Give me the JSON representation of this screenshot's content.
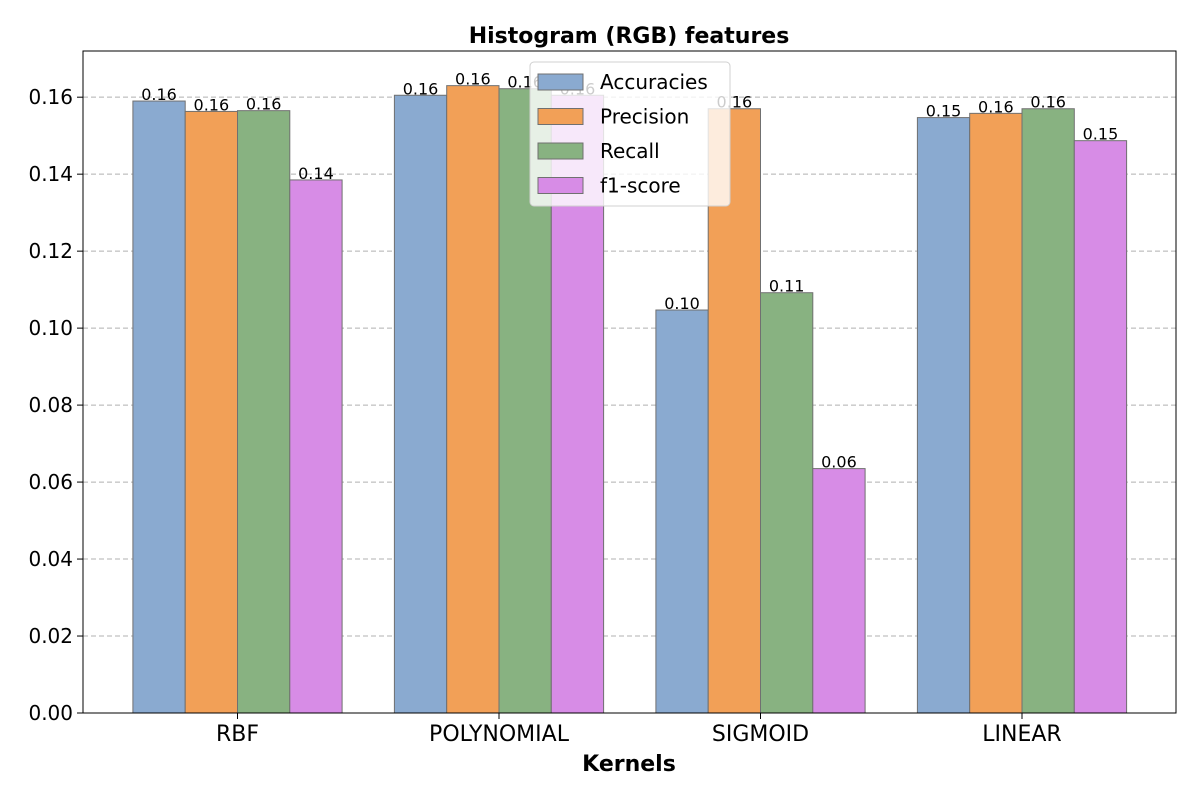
{
  "chart_data": {
    "type": "bar",
    "title": "Histogram (RGB) features",
    "xlabel": "Kernels",
    "ylabel": "",
    "categories": [
      "RBF",
      "POLYNOMIAL",
      "SIGMOID",
      "LINEAR"
    ],
    "series": [
      {
        "name": "Accuracies",
        "color": "#8aaad0",
        "values": [
          0.159,
          0.1605,
          0.1047,
          0.1547
        ],
        "labels": [
          "0.16",
          "0.16",
          "0.10",
          "0.15"
        ]
      },
      {
        "name": "Precision",
        "color": "#f2a057",
        "values": [
          0.1563,
          0.163,
          0.157,
          0.1558
        ],
        "labels": [
          "0.16",
          "0.16",
          "0.16",
          "0.16"
        ]
      },
      {
        "name": "Recall",
        "color": "#88b281",
        "values": [
          0.1565,
          0.1622,
          0.1092,
          0.157
        ],
        "labels": [
          "0.16",
          "0.16",
          "0.11",
          "0.16"
        ]
      },
      {
        "name": "f1-score",
        "color": "#d78ce6",
        "values": [
          0.1385,
          0.1605,
          0.0635,
          0.1487
        ],
        "labels": [
          "0.14",
          "0.16",
          "0.06",
          "0.15"
        ]
      }
    ],
    "ylim": [
      0,
      0.172
    ],
    "yticks": [
      "0.00",
      "0.02",
      "0.04",
      "0.06",
      "0.08",
      "0.10",
      "0.12",
      "0.14",
      "0.16"
    ],
    "grid": "y-dashed",
    "legend_position": "top-center"
  }
}
